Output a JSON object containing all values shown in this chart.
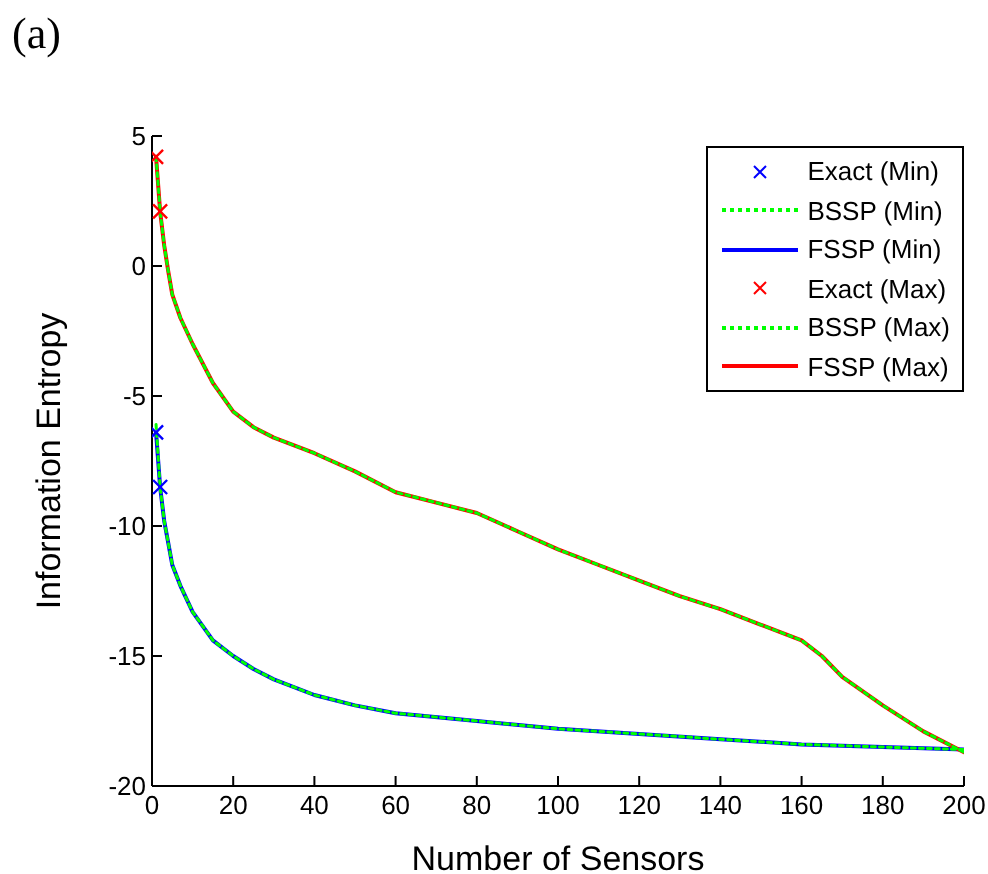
{
  "chart_data": {
    "type": "line",
    "xlabel": "Number of Sensors",
    "ylabel": "Information Entropy",
    "annotations": [
      "(a)"
    ],
    "xlim": [
      0,
      200
    ],
    "xticks": [
      0,
      20,
      40,
      60,
      80,
      100,
      120,
      140,
      160,
      180,
      200
    ],
    "ylim": [
      -20,
      5
    ],
    "yticks": [
      -20,
      -15,
      -10,
      -5,
      0,
      5
    ],
    "grid": false,
    "legend": "top right",
    "series": [
      {
        "name": "Exact (Min)",
        "type": "scatter",
        "marker": "cross",
        "color": "#0000ff",
        "x": [
          1,
          2
        ],
        "values": [
          -6.4,
          -8.5
        ]
      },
      {
        "name": "BSSP (Min)",
        "line_style": "dotted",
        "marker": "none",
        "color": "#00ff00",
        "x": [
          1,
          2,
          3,
          5,
          7,
          10,
          15,
          20,
          25,
          30,
          40,
          50,
          60,
          80,
          100,
          120,
          140,
          160,
          180,
          200
        ],
        "values": [
          -6.1,
          -8.5,
          -9.8,
          -11.5,
          -12.3,
          -13.3,
          -14.4,
          -15.0,
          -15.5,
          -15.9,
          -16.5,
          -16.9,
          -17.2,
          -17.5,
          -17.8,
          -18.0,
          -18.2,
          -18.4,
          -18.5,
          -18.6
        ]
      },
      {
        "name": "FSSP (Min)",
        "line_style": "solid",
        "marker": "none",
        "color": "#0000ff",
        "x": [
          1,
          2,
          3,
          5,
          7,
          10,
          15,
          20,
          25,
          30,
          40,
          50,
          60,
          80,
          100,
          120,
          140,
          160,
          180,
          200
        ],
        "values": [
          -6.4,
          -8.5,
          -9.8,
          -11.5,
          -12.3,
          -13.3,
          -14.4,
          -15.0,
          -15.5,
          -15.9,
          -16.5,
          -16.9,
          -17.2,
          -17.5,
          -17.8,
          -18.0,
          -18.2,
          -18.4,
          -18.5,
          -18.6
        ]
      },
      {
        "name": "Exact (Max)",
        "type": "scatter",
        "marker": "cross",
        "color": "#ff0000",
        "x": [
          1,
          2
        ],
        "values": [
          4.2,
          2.1
        ]
      },
      {
        "name": "BSSP (Max)",
        "line_style": "dotted",
        "marker": "none",
        "color": "#00ff00",
        "x": [
          1,
          2,
          3,
          4,
          5,
          7,
          10,
          15,
          20,
          25,
          30,
          40,
          50,
          60,
          70,
          80,
          90,
          100,
          110,
          120,
          130,
          140,
          150,
          160,
          165,
          170,
          180,
          190,
          200
        ],
        "values": [
          4.2,
          2.1,
          0.8,
          -0.2,
          -1.1,
          -2.0,
          -3.0,
          -4.5,
          -5.6,
          -6.2,
          -6.6,
          -7.2,
          -7.9,
          -8.7,
          -9.1,
          -9.5,
          -10.2,
          -10.9,
          -11.5,
          -12.1,
          -12.7,
          -13.2,
          -13.8,
          -14.4,
          -15.0,
          -15.8,
          -16.9,
          -17.9,
          -18.7
        ]
      },
      {
        "name": "FSSP (Max)",
        "line_style": "solid",
        "marker": "none",
        "color": "#ff0000",
        "x": [
          1,
          2,
          3,
          4,
          5,
          7,
          10,
          15,
          20,
          25,
          30,
          40,
          50,
          60,
          70,
          80,
          90,
          100,
          110,
          120,
          130,
          140,
          150,
          160,
          165,
          170,
          180,
          190,
          200
        ],
        "values": [
          4.2,
          2.1,
          0.8,
          -0.2,
          -1.1,
          -2.0,
          -3.0,
          -4.5,
          -5.6,
          -6.2,
          -6.6,
          -7.2,
          -7.9,
          -8.7,
          -9.1,
          -9.5,
          -10.2,
          -10.9,
          -11.5,
          -12.1,
          -12.7,
          -13.2,
          -13.8,
          -14.4,
          -15.0,
          -15.8,
          -16.9,
          -17.9,
          -18.7
        ]
      }
    ]
  }
}
